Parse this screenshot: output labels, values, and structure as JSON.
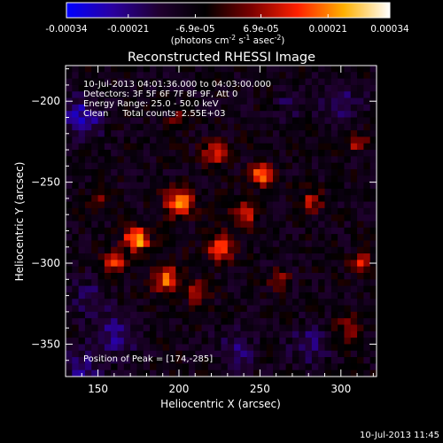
{
  "chart_data": {
    "type": "heatmap",
    "title": "Reconstructed RHESSI Image",
    "xlabel": "Heliocentric X (arcsec)",
    "ylabel": "Heliocentric Y (arcsec)",
    "xlim": [
      130,
      322
    ],
    "ylim": [
      -370,
      -178
    ],
    "x_ticks": [
      150,
      200,
      250,
      300
    ],
    "y_ticks": [
      -200,
      -250,
      -300,
      -350
    ],
    "colorbar": {
      "min": -0.00034,
      "max": 0.00034,
      "ticks": [
        "-0.00034",
        "-0.00021",
        "-6.9e-05",
        "6.9e-05",
        "0.00021",
        "0.00034"
      ],
      "tick_values": [
        -0.00034,
        -0.00021,
        -6.9e-05,
        6.9e-05,
        0.00021,
        0.00034
      ],
      "label_main": "(photons cm",
      "label_sup1": "-2",
      "label_mid1": " s",
      "label_sup2": "-1",
      "label_mid2": " asec",
      "label_sup3": "-2",
      "label_end": ")",
      "colors": [
        "#0000ff",
        "#2a00a0",
        "#200030",
        "#000000",
        "#7a0000",
        "#ff2000",
        "#ffb000",
        "#ffffff"
      ]
    },
    "annotations": [
      "10-Jul-2013 04:01:36.000 to 04:03:00.000",
      "Detectors: 3F 5F 6F 7F 8F 9F, Att 0",
      "Energy Range: 25.0 - 50.0 keV",
      "Clean     Total counts: 2.55E+03"
    ],
    "peak_label": "Position of Peak = [174,-285]",
    "peak": [
      174,
      -285
    ],
    "sources": [
      {
        "x": 174,
        "y": -285,
        "w": 1.0,
        "s": 11
      },
      {
        "x": 250,
        "y": -245,
        "w": 0.95,
        "s": 10
      },
      {
        "x": 200,
        "y": -262,
        "w": 0.85,
        "s": 13
      },
      {
        "x": 226,
        "y": -290,
        "w": 0.8,
        "s": 12
      },
      {
        "x": 192,
        "y": -310,
        "w": 0.75,
        "s": 12
      },
      {
        "x": 222,
        "y": -232,
        "w": 0.6,
        "s": 11
      },
      {
        "x": 160,
        "y": -300,
        "w": 0.6,
        "s": 10
      },
      {
        "x": 282,
        "y": -262,
        "w": 0.5,
        "s": 10
      },
      {
        "x": 212,
        "y": -318,
        "w": 0.55,
        "s": 10
      },
      {
        "x": 262,
        "y": -310,
        "w": 0.4,
        "s": 9
      },
      {
        "x": 312,
        "y": -300,
        "w": 0.65,
        "s": 9
      },
      {
        "x": 310,
        "y": -225,
        "w": 0.5,
        "s": 9
      },
      {
        "x": 305,
        "y": -340,
        "w": 0.5,
        "s": 10
      },
      {
        "x": 200,
        "y": -212,
        "w": 0.4,
        "s": 9
      },
      {
        "x": 150,
        "y": -262,
        "w": 0.35,
        "s": 9
      },
      {
        "x": 240,
        "y": -270,
        "w": 0.55,
        "s": 12
      }
    ],
    "negatives": [
      {
        "x": 140,
        "y": -210,
        "w": 0.9,
        "s": 12
      },
      {
        "x": 160,
        "y": -345,
        "w": 0.6,
        "s": 14
      },
      {
        "x": 300,
        "y": -200,
        "w": 0.5,
        "s": 12
      },
      {
        "x": 140,
        "y": -365,
        "w": 0.7,
        "s": 10
      },
      {
        "x": 235,
        "y": -355,
        "w": 0.5,
        "s": 12
      },
      {
        "x": 280,
        "y": -350,
        "w": 0.6,
        "s": 11
      },
      {
        "x": 270,
        "y": -200,
        "w": 0.4,
        "s": 10
      },
      {
        "x": 145,
        "y": -320,
        "w": 0.5,
        "s": 10
      }
    ]
  },
  "footer": {
    "timestamp": "10-Jul-2013 11:45"
  }
}
